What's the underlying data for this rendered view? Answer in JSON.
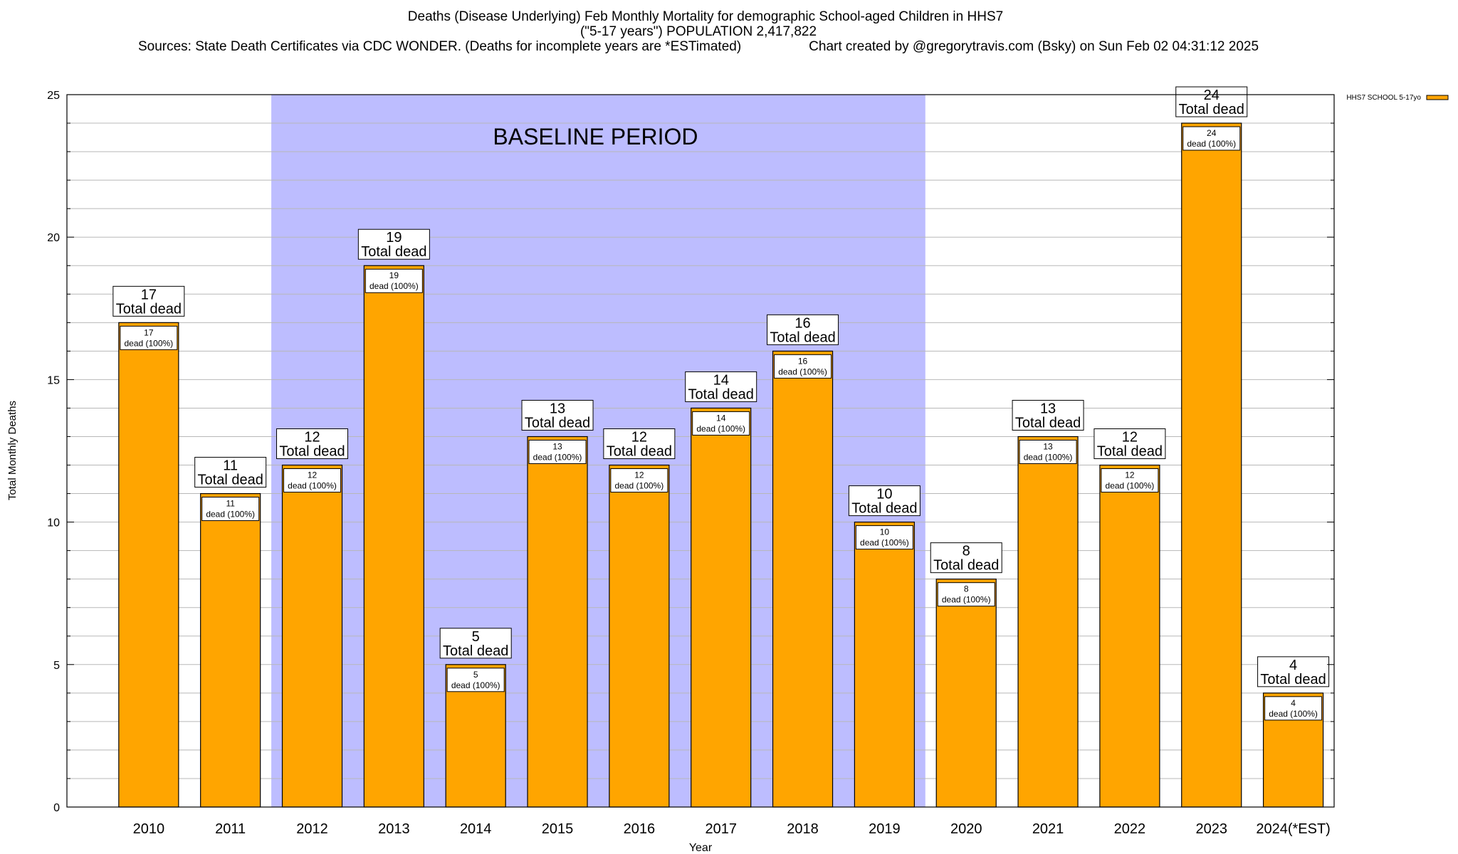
{
  "chart_data": {
    "type": "bar",
    "title": {
      "line1": "Deaths (Disease Underlying) Feb Monthly Mortality for demographic School-aged Children in HHS7",
      "line2": "(\"5-17 years\") POPULATION 2,417,822",
      "line3": "Sources: State Death Certificates via CDC WONDER. (Deaths for incomplete years are *ESTimated)                  Chart created by @gregorytravis.com (Bsky) on Sun Feb 02 04:31:12 2025"
    },
    "xlabel": "Year",
    "ylabel": "Total Monthly Deaths",
    "ylim": [
      0,
      25
    ],
    "yticks": [
      0,
      5,
      10,
      15,
      20,
      25
    ],
    "y_minor_step": 1,
    "categories": [
      "2010",
      "2011",
      "2012",
      "2013",
      "2014",
      "2015",
      "2016",
      "2017",
      "2018",
      "2019",
      "2020",
      "2021",
      "2022",
      "2023",
      "2024(*EST)"
    ],
    "series": [
      {
        "name": "HHS7 SCHOOL 5-17yo",
        "color": "#FFA500",
        "values": [
          17,
          11,
          12,
          19,
          5,
          13,
          12,
          14,
          16,
          10,
          8,
          13,
          12,
          24,
          4
        ]
      }
    ],
    "total_label_suffix": "Total dead",
    "inner_label_suffix": "dead (100%)",
    "baseline": {
      "label": "BASELINE PERIOD",
      "start_category": "2012",
      "end_category": "2019",
      "color": "#BDBDFF"
    },
    "grid": true,
    "legend_position": "top-right"
  }
}
